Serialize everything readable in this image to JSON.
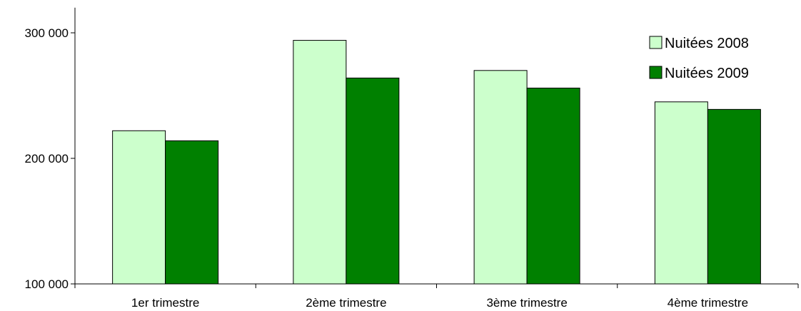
{
  "chart_data": {
    "type": "bar",
    "categories": [
      "1er trimestre",
      "2ème trimestre",
      "3ème trimestre",
      "4ème trimestre"
    ],
    "series": [
      {
        "name": "Nuitées 2008",
        "values": [
          222000,
          294000,
          270000,
          245000
        ],
        "color": "#ccffcc"
      },
      {
        "name": "Nuitées 2009",
        "values": [
          214000,
          264000,
          256000,
          239000
        ],
        "color": "#008000"
      }
    ],
    "yticks": [
      100000,
      200000,
      300000
    ],
    "ytick_labels": [
      "100 000",
      "200 000",
      "300 000"
    ],
    "ylim": [
      100000,
      320000
    ],
    "grid": false,
    "legend_position": "top-right",
    "title": "",
    "xlabel": "",
    "ylabel": ""
  }
}
